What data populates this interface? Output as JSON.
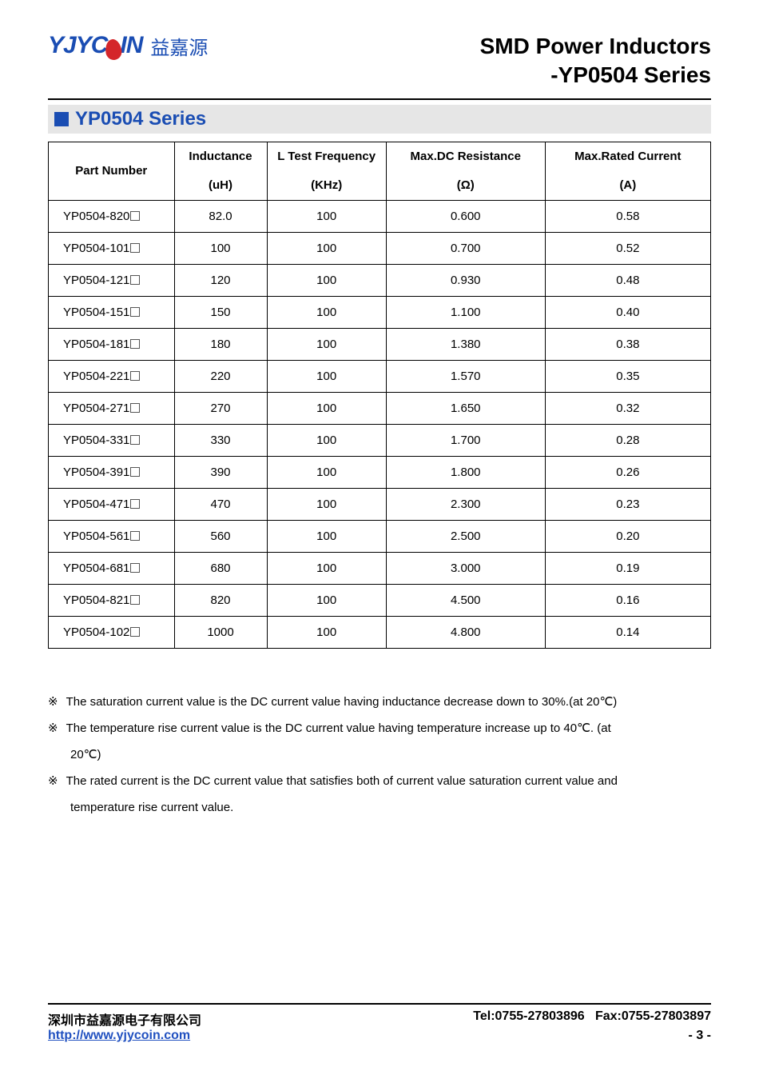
{
  "header": {
    "logo_brand_left": "YJYC",
    "logo_brand_right": "IN",
    "logo_cn": "益嘉源",
    "title_line1": "SMD Power Inductors",
    "title_line2": "-YP0504 Series"
  },
  "section": {
    "title": "YP0504 Series"
  },
  "table": {
    "columns": [
      {
        "label": "Part Number",
        "unit": ""
      },
      {
        "label": "Inductance",
        "unit": "(uH)"
      },
      {
        "label": "L Test Frequency",
        "unit": "(KHz)"
      },
      {
        "label": "Max.DC Resistance",
        "unit": "(Ω)"
      },
      {
        "label": "Max.Rated Current",
        "unit": "(A)"
      }
    ],
    "col_widths": [
      "19%",
      "14%",
      "18%",
      "24%",
      "25%"
    ],
    "rows": [
      {
        "pn": "YP0504-820",
        "ind": "82.0",
        "freq": "100",
        "dcr": "0.600",
        "cur": "0.58"
      },
      {
        "pn": "YP0504-101",
        "ind": "100",
        "freq": "100",
        "dcr": "0.700",
        "cur": "0.52"
      },
      {
        "pn": "YP0504-121",
        "ind": "120",
        "freq": "100",
        "dcr": "0.930",
        "cur": "0.48"
      },
      {
        "pn": "YP0504-151",
        "ind": "150",
        "freq": "100",
        "dcr": "1.100",
        "cur": "0.40"
      },
      {
        "pn": "YP0504-181",
        "ind": "180",
        "freq": "100",
        "dcr": "1.380",
        "cur": "0.38"
      },
      {
        "pn": "YP0504-221",
        "ind": "220",
        "freq": "100",
        "dcr": "1.570",
        "cur": "0.35"
      },
      {
        "pn": "YP0504-271",
        "ind": "270",
        "freq": "100",
        "dcr": "1.650",
        "cur": "0.32"
      },
      {
        "pn": "YP0504-331",
        "ind": "330",
        "freq": "100",
        "dcr": "1.700",
        "cur": "0.28"
      },
      {
        "pn": "YP0504-391",
        "ind": "390",
        "freq": "100",
        "dcr": "1.800",
        "cur": "0.26"
      },
      {
        "pn": "YP0504-471",
        "ind": "470",
        "freq": "100",
        "dcr": "2.300",
        "cur": "0.23"
      },
      {
        "pn": "YP0504-561",
        "ind": "560",
        "freq": "100",
        "dcr": "2.500",
        "cur": "0.20"
      },
      {
        "pn": "YP0504-681",
        "ind": "680",
        "freq": "100",
        "dcr": "3.000",
        "cur": "0.19"
      },
      {
        "pn": "YP0504-821",
        "ind": "820",
        "freq": "100",
        "dcr": "4.500",
        "cur": "0.16"
      },
      {
        "pn": "YP0504-102",
        "ind": "1000",
        "freq": "100",
        "dcr": "4.800",
        "cur": "0.14"
      }
    ]
  },
  "notes": {
    "mark": "※",
    "n1": "The saturation current value is the DC current value having inductance decrease down to 30%.(at 20℃)",
    "n2a": "The temperature rise current value is the DC current value having temperature increase up to 40℃. (at",
    "n2b": "20℃)",
    "n3a": "The rated current is the DC current value that satisfies both of current value saturation current value and",
    "n3b": "temperature rise current value."
  },
  "footer": {
    "company": "深圳市益嘉源电子有限公司",
    "tel": "Tel:0755-27803896",
    "fax": "Fax:0755-27803897",
    "url": "http://www.yjycoin.com",
    "page": "- 3 -"
  }
}
